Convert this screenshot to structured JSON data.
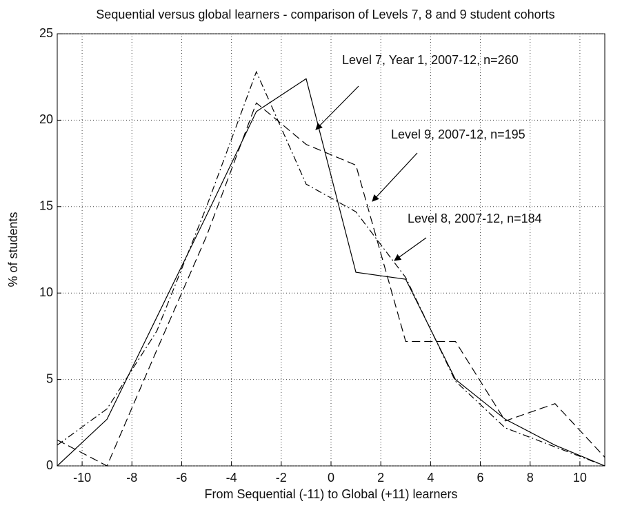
{
  "chart_data": {
    "type": "line",
    "title": "Sequential versus global learners - comparison of Levels 7, 8 and 9 student cohorts",
    "x_label": "From Sequential (-11) to Global (+11) learners",
    "y_label": "% of students",
    "x": [
      -11,
      -9,
      -7,
      -5,
      -3,
      -1,
      1,
      3,
      5,
      7,
      9,
      11
    ],
    "series": [
      {
        "name": "Level 7, Year 1, 2007-12, n=260",
        "color": "#000000",
        "linestyle": "solid",
        "values": [
          0,
          2.7,
          8.6,
          14.5,
          20.5,
          22.4,
          11.2,
          10.8,
          5.0,
          2.7,
          1.2,
          0
        ]
      },
      {
        "name": "Level 9, 2007-12, n=195",
        "color": "#000000",
        "linestyle": "dashed",
        "values": [
          1.5,
          0,
          6.7,
          13.3,
          21.0,
          18.6,
          17.4,
          7.2,
          7.2,
          2.6,
          3.6,
          0.5
        ]
      },
      {
        "name": "Level 8, 2007-12, n=184",
        "color": "#000000",
        "linestyle": "dashdot",
        "values": [
          1.2,
          3.3,
          7.8,
          15.0,
          22.8,
          16.3,
          14.7,
          10.9,
          4.9,
          2.2,
          1.1,
          0
        ]
      }
    ],
    "xlim": [
      -11,
      11
    ],
    "xticks": [
      -10,
      -8,
      -6,
      -4,
      -2,
      0,
      2,
      4,
      6,
      8,
      10
    ],
    "ylim": [
      0,
      25
    ],
    "yticks": [
      0,
      5,
      10,
      15,
      20,
      25
    ],
    "grid": true
  }
}
